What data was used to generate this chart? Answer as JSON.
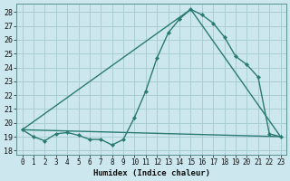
{
  "xlabel": "Humidex (Indice chaleur)",
  "background_color": "#cce8ee",
  "grid_color": "#aacdd6",
  "line_color": "#2a7a72",
  "xlim": [
    -0.5,
    23.5
  ],
  "ylim": [
    17.7,
    28.6
  ],
  "xticks": [
    0,
    1,
    2,
    3,
    4,
    5,
    6,
    7,
    8,
    9,
    10,
    11,
    12,
    13,
    14,
    15,
    16,
    17,
    18,
    19,
    20,
    21,
    22,
    23
  ],
  "yticks": [
    18,
    19,
    20,
    21,
    22,
    23,
    24,
    25,
    26,
    27,
    28
  ],
  "series1_x": [
    0,
    1,
    2,
    3,
    4,
    5,
    6,
    7,
    8,
    9,
    10,
    11,
    12,
    13,
    14,
    15,
    16,
    17,
    18,
    19,
    20,
    21,
    22,
    23
  ],
  "series1_y": [
    19.5,
    19.0,
    18.7,
    19.2,
    19.3,
    19.1,
    18.8,
    18.8,
    18.4,
    18.8,
    20.4,
    22.3,
    24.7,
    26.5,
    27.5,
    28.2,
    27.8,
    27.2,
    26.2,
    24.8,
    24.2,
    23.3,
    19.2,
    19.0
  ],
  "trend1_x": [
    0,
    23
  ],
  "trend1_y": [
    19.5,
    19.0
  ],
  "trend2_x": [
    0,
    15,
    23
  ],
  "trend2_y": [
    19.5,
    28.2,
    19.0
  ],
  "line_width": 1.0,
  "marker": "D",
  "marker_size": 2.2
}
